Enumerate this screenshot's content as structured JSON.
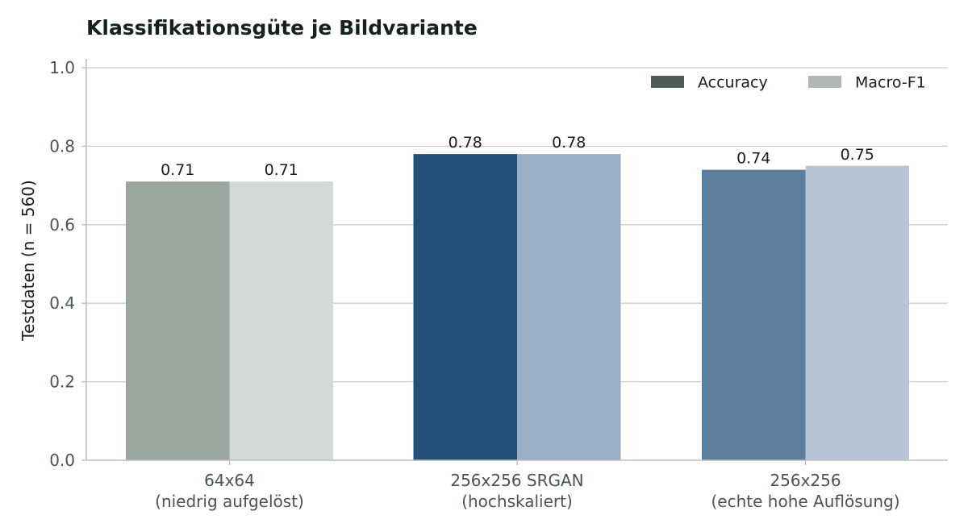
{
  "chart_data": {
    "type": "bar",
    "title": "Klassifikationsgüte je Bildvariante",
    "xlabel": "",
    "ylabel": "Testdaten (n = 560)",
    "ylim": [
      0,
      1.0
    ],
    "yticks": [
      "0.0",
      "0.2",
      "0.4",
      "0.6",
      "0.8",
      "1.0"
    ],
    "grid": "horizontal",
    "legend_position": "top-right",
    "categories": [
      [
        "64x64",
        "(niedrig aufgelöst)"
      ],
      [
        "256x256 SRGAN",
        "(hochskaliert)"
      ],
      [
        "256x256",
        "(echte hohe Auflösung)"
      ]
    ],
    "series": [
      {
        "name": "Accuracy",
        "values": [
          0.71,
          0.78,
          0.74
        ],
        "labels": [
          "0.71",
          "0.78",
          "0.74"
        ],
        "colors": [
          "#99a79f",
          "#214f78",
          "#5c7f9e"
        ],
        "legend_color": "#4f5b57"
      },
      {
        "name": "Macro-F1",
        "values": [
          0.71,
          0.78,
          0.75
        ],
        "labels": [
          "0.71",
          "0.78",
          "0.75"
        ],
        "colors": [
          "#d3d9d6",
          "#9aafc5",
          "#b6c5d5"
        ],
        "legend_color": "#b0b7b3"
      }
    ],
    "colors": {
      "grid": "#c9cecb",
      "axis": "#b9bfbb"
    }
  }
}
